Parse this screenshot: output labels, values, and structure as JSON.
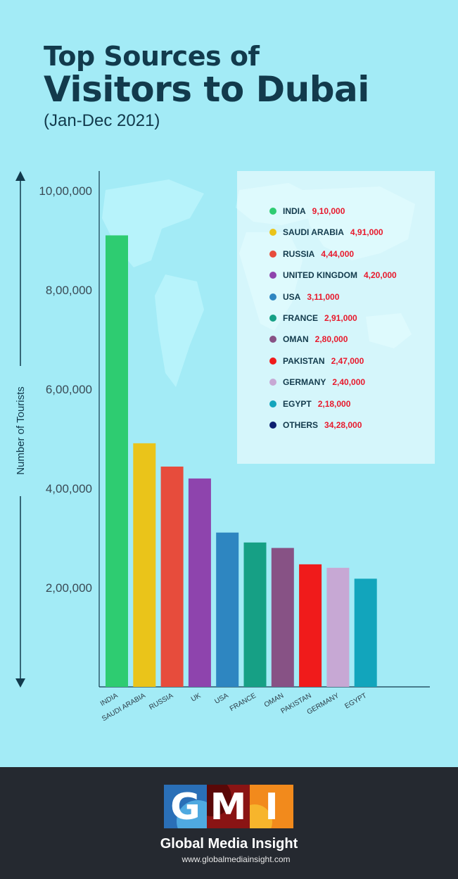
{
  "header": {
    "title_line1": "Top Sources of",
    "title_line2": "Visitors to Dubai",
    "subtitle": "(Jan-Dec 2021)"
  },
  "chart_data": {
    "type": "bar",
    "ylabel": "Number of Tourists",
    "yticks": [
      "2,00,000",
      "4,00,000",
      "6,00,000",
      "8,00,000",
      "10,00,000"
    ],
    "ytick_values": [
      200000,
      400000,
      600000,
      800000,
      1000000
    ],
    "categories": [
      "INDIA",
      "SAUDI ARABIA",
      "RUSSIA",
      "UK",
      "USA",
      "FRANCE",
      "OMAN",
      "PAKISTAN",
      "GERMANY",
      "EGYPT"
    ],
    "values": [
      910000,
      491000,
      444000,
      420000,
      311000,
      291000,
      280000,
      247000,
      240000,
      218000
    ],
    "colors": [
      "#2ecc71",
      "#eac41a",
      "#e74c3c",
      "#8e44ad",
      "#2e86c1",
      "#16a085",
      "#875285",
      "#f01b1b",
      "#c7a8d4",
      "#12a5bc"
    ],
    "legend": [
      {
        "name": "INDIA",
        "value": "9,10,000",
        "color": "#2ecc71"
      },
      {
        "name": "SAUDI ARABIA",
        "value": "4,91,000",
        "color": "#eac41a"
      },
      {
        "name": "RUSSIA",
        "value": "4,44,000",
        "color": "#e74c3c"
      },
      {
        "name": "UNITED KINGDOM",
        "value": "4,20,000",
        "color": "#8e44ad"
      },
      {
        "name": "USA",
        "value": "3,11,000",
        "color": "#2e86c1"
      },
      {
        "name": "FRANCE",
        "value": "2,91,000",
        "color": "#16a085"
      },
      {
        "name": "OMAN",
        "value": "2,80,000",
        "color": "#875285"
      },
      {
        "name": "PAKISTAN",
        "value": "2,47,000",
        "color": "#f01b1b"
      },
      {
        "name": "GERMANY",
        "value": "2,40,000",
        "color": "#c7a8d4"
      },
      {
        "name": "EGYPT",
        "value": "2,18,000",
        "color": "#12a5bc"
      },
      {
        "name": "OTHERS",
        "value": "34,28,000",
        "color": "#0c1f70"
      }
    ]
  },
  "footer": {
    "logo_letters": [
      "G",
      "M",
      "I"
    ],
    "brand": "Global Media Insight",
    "url": "www.globalmediainsight.com"
  }
}
